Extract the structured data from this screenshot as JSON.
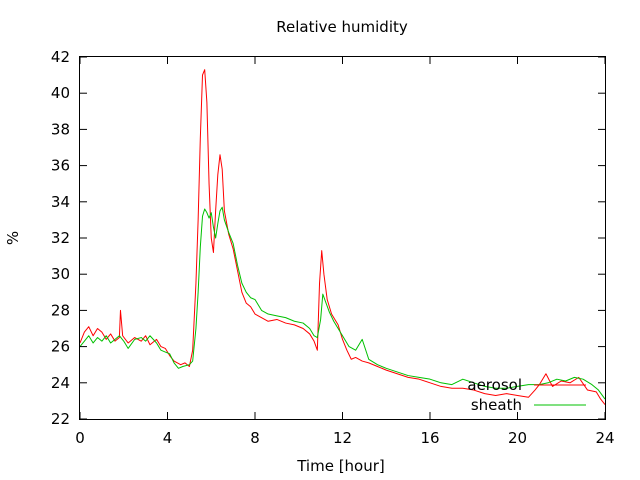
{
  "chart_data": {
    "type": "line",
    "title": "Relative humidity",
    "xlabel": "Time [hour]",
    "ylabel": "%",
    "xlim": [
      0,
      24
    ],
    "ylim": [
      22,
      42
    ],
    "xticks": [
      0,
      4,
      8,
      12,
      16,
      20,
      24
    ],
    "yticks": [
      22,
      24,
      26,
      28,
      30,
      32,
      34,
      36,
      38,
      40,
      42
    ],
    "grid": false,
    "legend_position": "bottom-right",
    "series": [
      {
        "name": "aerosol",
        "color": "#ff0000",
        "points": [
          [
            0,
            26.2
          ],
          [
            0.2,
            26.8
          ],
          [
            0.4,
            27.1
          ],
          [
            0.6,
            26.6
          ],
          [
            0.8,
            27.0
          ],
          [
            1.0,
            26.8
          ],
          [
            1.2,
            26.4
          ],
          [
            1.4,
            26.7
          ],
          [
            1.6,
            26.3
          ],
          [
            1.8,
            26.5
          ],
          [
            1.85,
            28.0
          ],
          [
            1.95,
            26.6
          ],
          [
            2.2,
            26.2
          ],
          [
            2.5,
            26.5
          ],
          [
            2.8,
            26.3
          ],
          [
            3.0,
            26.6
          ],
          [
            3.2,
            26.1
          ],
          [
            3.5,
            26.4
          ],
          [
            3.7,
            26.0
          ],
          [
            3.9,
            25.9
          ],
          [
            4.1,
            25.5
          ],
          [
            4.3,
            25.2
          ],
          [
            4.6,
            25.0
          ],
          [
            4.8,
            25.1
          ],
          [
            5.0,
            24.9
          ],
          [
            5.15,
            25.8
          ],
          [
            5.3,
            29.5
          ],
          [
            5.4,
            33.0
          ],
          [
            5.5,
            37.5
          ],
          [
            5.6,
            41.0
          ],
          [
            5.7,
            41.3
          ],
          [
            5.8,
            39.5
          ],
          [
            5.9,
            35.0
          ],
          [
            6.0,
            32.0
          ],
          [
            6.1,
            31.2
          ],
          [
            6.2,
            33.5
          ],
          [
            6.3,
            35.5
          ],
          [
            6.4,
            36.6
          ],
          [
            6.5,
            35.8
          ],
          [
            6.6,
            33.5
          ],
          [
            6.8,
            32.2
          ],
          [
            7.0,
            31.4
          ],
          [
            7.2,
            30.2
          ],
          [
            7.4,
            29.0
          ],
          [
            7.6,
            28.4
          ],
          [
            7.8,
            28.2
          ],
          [
            8.0,
            27.8
          ],
          [
            8.3,
            27.6
          ],
          [
            8.6,
            27.4
          ],
          [
            9.0,
            27.5
          ],
          [
            9.4,
            27.3
          ],
          [
            9.8,
            27.2
          ],
          [
            10.2,
            27.0
          ],
          [
            10.5,
            26.7
          ],
          [
            10.7,
            26.3
          ],
          [
            10.85,
            25.8
          ],
          [
            10.95,
            29.5
          ],
          [
            11.05,
            31.3
          ],
          [
            11.15,
            30.0
          ],
          [
            11.3,
            28.6
          ],
          [
            11.5,
            27.8
          ],
          [
            11.8,
            27.2
          ],
          [
            12.0,
            26.4
          ],
          [
            12.2,
            25.8
          ],
          [
            12.4,
            25.3
          ],
          [
            12.6,
            25.4
          ],
          [
            12.9,
            25.2
          ],
          [
            13.2,
            25.1
          ],
          [
            13.6,
            24.9
          ],
          [
            14.0,
            24.7
          ],
          [
            14.5,
            24.5
          ],
          [
            15.0,
            24.3
          ],
          [
            15.5,
            24.2
          ],
          [
            16.0,
            24.0
          ],
          [
            16.5,
            23.8
          ],
          [
            17.0,
            23.7
          ],
          [
            17.5,
            23.7
          ],
          [
            18.0,
            23.6
          ],
          [
            18.5,
            23.4
          ],
          [
            19.0,
            23.3
          ],
          [
            19.5,
            23.4
          ],
          [
            20.0,
            23.3
          ],
          [
            20.5,
            23.2
          ],
          [
            20.8,
            23.6
          ],
          [
            21.0,
            23.9
          ],
          [
            21.3,
            24.5
          ],
          [
            21.6,
            23.8
          ],
          [
            22.0,
            24.1
          ],
          [
            22.4,
            24.0
          ],
          [
            22.8,
            24.3
          ],
          [
            23.2,
            23.6
          ],
          [
            23.6,
            23.5
          ],
          [
            23.8,
            23.1
          ],
          [
            24.0,
            22.8
          ]
        ]
      },
      {
        "name": "sheath",
        "color": "#00c000",
        "points": [
          [
            0,
            26.0
          ],
          [
            0.2,
            26.3
          ],
          [
            0.4,
            26.6
          ],
          [
            0.6,
            26.2
          ],
          [
            0.8,
            26.5
          ],
          [
            1.0,
            26.3
          ],
          [
            1.2,
            26.6
          ],
          [
            1.4,
            26.2
          ],
          [
            1.6,
            26.4
          ],
          [
            1.8,
            26.6
          ],
          [
            2.0,
            26.3
          ],
          [
            2.2,
            25.9
          ],
          [
            2.5,
            26.4
          ],
          [
            2.8,
            26.5
          ],
          [
            3.0,
            26.3
          ],
          [
            3.2,
            26.6
          ],
          [
            3.5,
            26.2
          ],
          [
            3.7,
            25.8
          ],
          [
            3.9,
            25.7
          ],
          [
            4.1,
            25.6
          ],
          [
            4.3,
            25.1
          ],
          [
            4.5,
            24.8
          ],
          [
            4.7,
            24.9
          ],
          [
            5.0,
            25.0
          ],
          [
            5.15,
            25.2
          ],
          [
            5.3,
            27.0
          ],
          [
            5.4,
            29.0
          ],
          [
            5.5,
            31.5
          ],
          [
            5.6,
            33.2
          ],
          [
            5.7,
            33.6
          ],
          [
            5.8,
            33.4
          ],
          [
            5.9,
            33.1
          ],
          [
            6.0,
            33.4
          ],
          [
            6.1,
            32.6
          ],
          [
            6.2,
            32.0
          ],
          [
            6.3,
            32.8
          ],
          [
            6.4,
            33.5
          ],
          [
            6.5,
            33.7
          ],
          [
            6.6,
            33.0
          ],
          [
            6.8,
            32.3
          ],
          [
            7.0,
            31.7
          ],
          [
            7.2,
            30.5
          ],
          [
            7.4,
            29.5
          ],
          [
            7.6,
            29.0
          ],
          [
            7.8,
            28.7
          ],
          [
            8.0,
            28.6
          ],
          [
            8.3,
            28.0
          ],
          [
            8.6,
            27.8
          ],
          [
            9.0,
            27.7
          ],
          [
            9.4,
            27.6
          ],
          [
            9.8,
            27.4
          ],
          [
            10.2,
            27.3
          ],
          [
            10.5,
            27.0
          ],
          [
            10.7,
            26.6
          ],
          [
            10.85,
            26.5
          ],
          [
            11.0,
            27.5
          ],
          [
            11.1,
            28.9
          ],
          [
            11.25,
            28.4
          ],
          [
            11.4,
            27.9
          ],
          [
            11.6,
            27.4
          ],
          [
            11.8,
            27.0
          ],
          [
            12.0,
            26.6
          ],
          [
            12.3,
            26.0
          ],
          [
            12.6,
            25.8
          ],
          [
            12.9,
            26.4
          ],
          [
            13.2,
            25.3
          ],
          [
            13.6,
            25.0
          ],
          [
            14.0,
            24.8
          ],
          [
            14.5,
            24.6
          ],
          [
            15.0,
            24.4
          ],
          [
            15.5,
            24.3
          ],
          [
            16.0,
            24.2
          ],
          [
            16.5,
            24.0
          ],
          [
            17.0,
            23.9
          ],
          [
            17.5,
            24.2
          ],
          [
            18.0,
            24.0
          ],
          [
            18.5,
            23.8
          ],
          [
            19.0,
            23.7
          ],
          [
            19.5,
            23.7
          ],
          [
            20.0,
            23.8
          ],
          [
            20.5,
            23.9
          ],
          [
            21.0,
            23.9
          ],
          [
            21.4,
            24.0
          ],
          [
            21.8,
            24.2
          ],
          [
            22.2,
            24.1
          ],
          [
            22.6,
            24.3
          ],
          [
            23.0,
            24.2
          ],
          [
            23.4,
            23.9
          ],
          [
            23.7,
            23.6
          ],
          [
            24.0,
            23.1
          ]
        ]
      }
    ]
  }
}
